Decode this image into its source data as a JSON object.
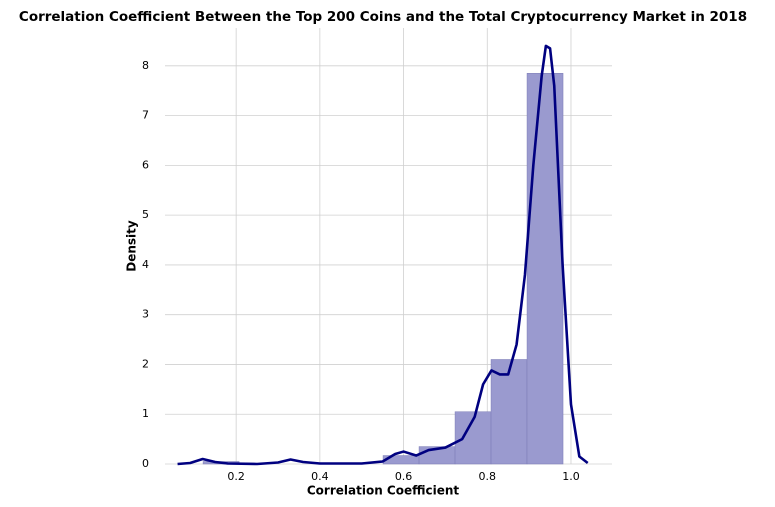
{
  "chart_data": {
    "type": "histogram",
    "title": "Correlation Coefficient Between the Top 200 Coins and the Total Cryptocurrency Market in 2018",
    "xlabel": "Correlation Coefficient",
    "ylabel": "Density",
    "bins": [
      0.121,
      0.207,
      0.293,
      0.379,
      0.465,
      0.551,
      0.637,
      0.723,
      0.809,
      0.895,
      0.981
    ],
    "counts": [
      0.05,
      0,
      0,
      0,
      0,
      0.17,
      0.35,
      1.05,
      2.1,
      7.85
    ],
    "color": "#9a9acf",
    "kde": {
      "color": "#000080",
      "x": [
        0.06,
        0.09,
        0.12,
        0.15,
        0.18,
        0.25,
        0.3,
        0.33,
        0.36,
        0.4,
        0.5,
        0.55,
        0.58,
        0.6,
        0.63,
        0.66,
        0.7,
        0.74,
        0.77,
        0.79,
        0.81,
        0.83,
        0.85,
        0.87,
        0.89,
        0.91,
        0.93,
        0.94,
        0.95,
        0.96,
        0.98,
        1.0,
        1.02,
        1.04
      ],
      "y": [
        0,
        0.02,
        0.1,
        0.04,
        0.01,
        0,
        0.03,
        0.09,
        0.04,
        0.01,
        0.01,
        0.05,
        0.2,
        0.25,
        0.17,
        0.28,
        0.33,
        0.5,
        0.95,
        1.6,
        1.88,
        1.8,
        1.8,
        2.4,
        3.8,
        6.0,
        7.8,
        8.4,
        8.35,
        7.6,
        4.0,
        1.2,
        0.15,
        0.02
      ]
    },
    "xlim": [
      0.03,
      1.098
    ],
    "ylim": [
      0,
      8.76
    ],
    "xticks": [
      0.2,
      0.4,
      0.6,
      0.8,
      {
        "value": 1,
        "label": "1.0"
      }
    ],
    "yticks": [
      0,
      1,
      2,
      3,
      4,
      5,
      6,
      7,
      8
    ],
    "grid": true
  }
}
